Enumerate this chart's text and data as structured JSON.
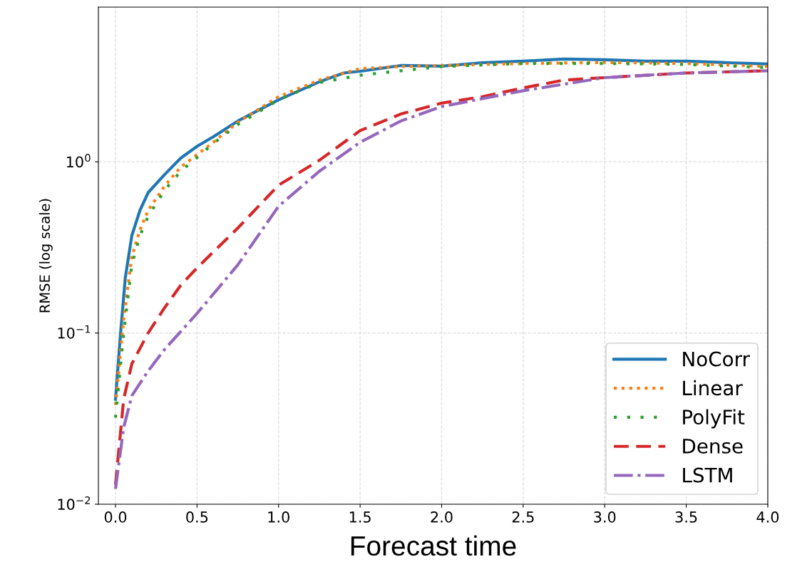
{
  "chart_data": {
    "type": "line",
    "xlabel": "Forecast time",
    "ylabel": "RMSE (log scale)",
    "log": "y",
    "grid": true,
    "legend": "bottom right",
    "xlim": [
      -0.105,
      4.0
    ],
    "ylim": [
      0.01,
      8.0
    ],
    "xticks": [
      {
        "value": 0,
        "label": "0.0"
      },
      {
        "value": 0.5,
        "label": "0.5"
      },
      {
        "value": 1,
        "label": "1.0"
      },
      {
        "value": 1.5,
        "label": "1.5"
      },
      {
        "value": 2,
        "label": "2.0"
      },
      {
        "value": 2.5,
        "label": "2.5"
      },
      {
        "value": 3,
        "label": "3.0"
      },
      {
        "value": 3.5,
        "label": "3.5"
      },
      {
        "value": 4,
        "label": "4.0"
      }
    ],
    "yticks": [
      {
        "value": 0.01,
        "label": "10$^{−2}$"
      },
      {
        "value": 0.1,
        "label": "10$^{−1}$"
      },
      {
        "value": 1,
        "label": "10$^{0}$"
      }
    ],
    "series": [
      {
        "name": "NoCorr",
        "color": "#1f77b4",
        "line_style": "solid",
        "x": [
          0,
          0.03,
          0.06,
          0.1,
          0.15,
          0.2,
          0.3,
          0.4,
          0.5,
          0.6,
          0.75,
          1.0,
          1.25,
          1.4,
          1.5,
          1.75,
          2.0,
          2.25,
          2.5,
          2.75,
          3.0,
          3.25,
          3.5,
          3.75,
          4.0
        ],
        "values": [
          0.041,
          0.097,
          0.21,
          0.37,
          0.52,
          0.66,
          0.84,
          1.05,
          1.23,
          1.4,
          1.73,
          2.3,
          2.93,
          3.3,
          3.38,
          3.65,
          3.62,
          3.79,
          3.87,
          3.98,
          3.94,
          3.87,
          3.87,
          3.79,
          3.72
        ]
      },
      {
        "name": "Linear",
        "color": "#ff7f0e",
        "line_style": "dotted",
        "x": [
          0,
          0.05,
          0.1,
          0.15,
          0.2,
          0.3,
          0.4,
          0.5,
          0.6,
          0.75,
          1.0,
          1.25,
          1.5,
          1.75,
          2.0,
          2.5,
          3.0,
          3.5,
          4.0
        ],
        "values": [
          0.038,
          0.12,
          0.28,
          0.4,
          0.52,
          0.72,
          0.93,
          1.1,
          1.3,
          1.7,
          2.4,
          3.0,
          3.5,
          3.6,
          3.65,
          3.75,
          3.8,
          3.75,
          3.6
        ]
      },
      {
        "name": "PolyFit",
        "color": "#2ca02c",
        "line_style": "loosely dotted",
        "x": [
          0,
          0.05,
          0.1,
          0.15,
          0.2,
          0.3,
          0.4,
          0.5,
          0.6,
          0.75,
          1.0,
          1.25,
          1.5,
          1.75,
          2.0,
          2.5,
          3.0,
          3.5,
          4.0
        ],
        "values": [
          0.032,
          0.1,
          0.25,
          0.37,
          0.48,
          0.68,
          0.88,
          1.06,
          1.28,
          1.65,
          2.3,
          2.9,
          3.2,
          3.4,
          3.6,
          3.75,
          3.75,
          3.7,
          3.55
        ]
      },
      {
        "name": "Dense",
        "color": "#d62728",
        "line_style": "dashed",
        "x": [
          0,
          0.05,
          0.1,
          0.2,
          0.3,
          0.4,
          0.5,
          0.75,
          1.0,
          1.25,
          1.5,
          1.75,
          2.0,
          2.25,
          2.5,
          2.75,
          3.0,
          3.5,
          4.0
        ],
        "values": [
          0.013,
          0.041,
          0.066,
          0.1,
          0.14,
          0.19,
          0.24,
          0.41,
          0.73,
          1.02,
          1.52,
          1.9,
          2.2,
          2.4,
          2.7,
          3.0,
          3.1,
          3.3,
          3.4
        ]
      },
      {
        "name": "LSTM",
        "color": "#9467bd",
        "line_style": "dashdot",
        "x": [
          0,
          0.05,
          0.1,
          0.2,
          0.3,
          0.5,
          0.75,
          1.0,
          1.25,
          1.5,
          1.75,
          2.0,
          2.5,
          3.0,
          3.5,
          4.0
        ],
        "values": [
          0.0123,
          0.028,
          0.043,
          0.06,
          0.08,
          0.13,
          0.25,
          0.55,
          0.88,
          1.3,
          1.73,
          2.1,
          2.6,
          3.1,
          3.3,
          3.4
        ]
      }
    ]
  }
}
